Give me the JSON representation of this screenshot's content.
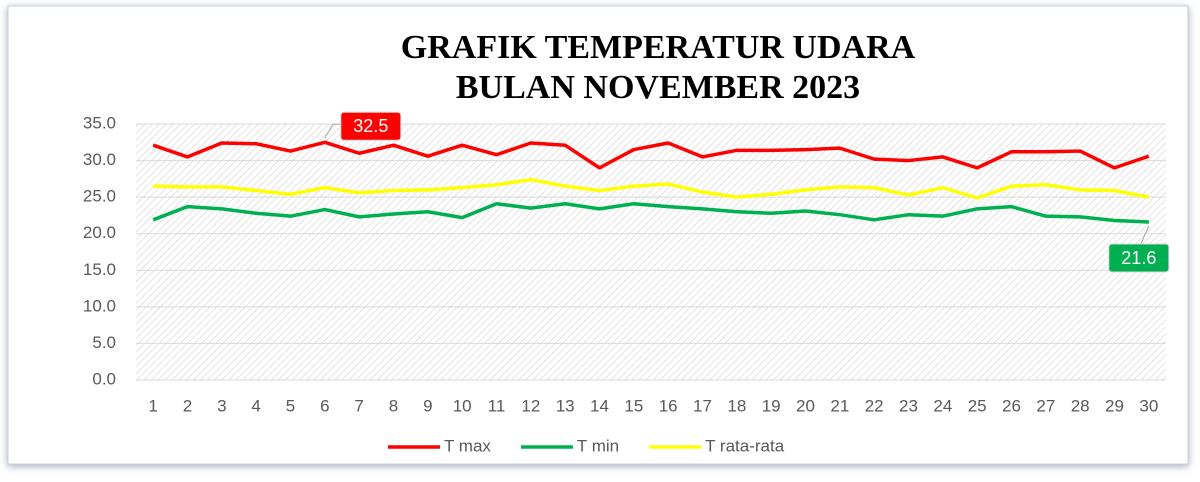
{
  "chart_data": {
    "type": "line",
    "title": [
      "GRAFIK TEMPERATUR UDARA",
      "BULAN NOVEMBER 2023"
    ],
    "categories": [
      "1",
      "2",
      "3",
      "4",
      "5",
      "6",
      "7",
      "8",
      "9",
      "10",
      "11",
      "12",
      "13",
      "14",
      "15",
      "16",
      "17",
      "18",
      "19",
      "20",
      "21",
      "22",
      "23",
      "24",
      "25",
      "26",
      "27",
      "28",
      "29",
      "30"
    ],
    "series": [
      {
        "name": "T max",
        "color": "#ff0000",
        "labeled_points": [
          5
        ],
        "values": [
          32.1,
          30.5,
          32.4,
          32.3,
          31.3,
          32.5,
          31.0,
          32.1,
          30.6,
          32.1,
          30.8,
          32.4,
          32.1,
          29.0,
          31.5,
          32.4,
          30.5,
          31.4,
          31.4,
          31.5,
          31.7,
          30.2,
          30.0,
          30.5,
          29.0,
          31.2,
          31.2,
          31.3,
          29.0,
          30.6
        ]
      },
      {
        "name": "T min",
        "color": "#00b050",
        "labeled_points": [
          29
        ],
        "values": [
          21.9,
          23.7,
          23.4,
          22.8,
          22.4,
          23.3,
          22.3,
          22.7,
          23.0,
          22.2,
          24.1,
          23.5,
          24.1,
          23.4,
          24.1,
          23.7,
          23.4,
          23.0,
          22.8,
          23.1,
          22.6,
          21.9,
          22.6,
          22.4,
          23.4,
          23.7,
          22.4,
          22.3,
          21.8,
          21.6
        ]
      },
      {
        "name": "T rata-rata",
        "color": "#ffff00",
        "labeled_points": [],
        "values": [
          26.5,
          26.4,
          26.4,
          25.9,
          25.4,
          26.3,
          25.6,
          25.9,
          26.0,
          26.3,
          26.7,
          27.4,
          26.5,
          25.9,
          26.5,
          26.8,
          25.7,
          25.0,
          25.4,
          26.0,
          26.4,
          26.3,
          25.3,
          26.3,
          24.9,
          26.5,
          26.7,
          26.0,
          25.9,
          25.0
        ]
      }
    ],
    "ylim": [
      0,
      35
    ],
    "yticks": [
      {
        "value": 0,
        "label": "0.0"
      },
      {
        "value": 5,
        "label": "5.0"
      },
      {
        "value": 10,
        "label": "10.0"
      },
      {
        "value": 15,
        "label": "15.0"
      },
      {
        "value": 20,
        "label": "20.0"
      },
      {
        "value": 25,
        "label": "25.0"
      },
      {
        "value": 30,
        "label": "30.0"
      },
      {
        "value": 35,
        "label": "35.0"
      }
    ],
    "grid": true,
    "legend": "bottom"
  }
}
